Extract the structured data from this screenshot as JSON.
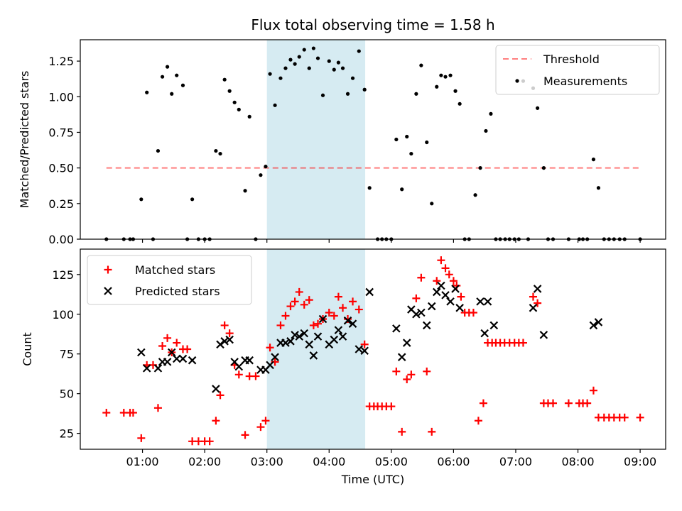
{
  "title": "Flux total observing time = 1.58 h",
  "colors": {
    "band": "#add8e6",
    "threshold": "#ff0000",
    "measurement": "#000000",
    "matched": "#ff0000",
    "predicted": "#000000"
  },
  "chart_data": [
    {
      "type": "scatter",
      "ylabel": "Matched/Predicted stars",
      "xlim": [
        0.0,
        9.41
      ],
      "ylim": [
        0.0,
        1.4
      ],
      "xticks": [
        1,
        2,
        3,
        4,
        5,
        6,
        7,
        8,
        9
      ],
      "yticks": [
        0.0,
        0.25,
        0.5,
        0.75,
        1.0,
        1.25
      ],
      "ytick_labels": [
        "0.00",
        "0.25",
        "0.50",
        "0.75",
        "1.00",
        "1.25"
      ],
      "legend_position": "top-right",
      "highlight_band": [
        3.0,
        4.58
      ],
      "threshold": {
        "name": "Threshold",
        "x": [
          0.42,
          9.0
        ],
        "y": 0.5,
        "style": "dashed",
        "alpha": 0.5
      },
      "series": [
        {
          "name": "Measurements",
          "marker": "dot",
          "points": [
            [
              0.42,
              0.0
            ],
            [
              0.7,
              0.0
            ],
            [
              0.8,
              0.0
            ],
            [
              0.85,
              0.0
            ],
            [
              0.98,
              0.28
            ],
            [
              1.07,
              1.03
            ],
            [
              1.17,
              0.0
            ],
            [
              1.25,
              0.62
            ],
            [
              1.32,
              1.14
            ],
            [
              1.4,
              1.21
            ],
            [
              1.47,
              1.02
            ],
            [
              1.55,
              1.15
            ],
            [
              1.65,
              1.08
            ],
            [
              1.72,
              0.0
            ],
            [
              1.8,
              0.28
            ],
            [
              1.9,
              0.0
            ],
            [
              2.0,
              0.0
            ],
            [
              2.08,
              0.0
            ],
            [
              2.18,
              0.62
            ],
            [
              2.25,
              0.6
            ],
            [
              2.32,
              1.12
            ],
            [
              2.4,
              1.04
            ],
            [
              2.48,
              0.96
            ],
            [
              2.55,
              0.91
            ],
            [
              2.65,
              0.34
            ],
            [
              2.72,
              0.86
            ],
            [
              2.82,
              0.0
            ],
            [
              2.9,
              0.45
            ],
            [
              2.98,
              0.51
            ],
            [
              3.05,
              1.16
            ],
            [
              3.13,
              0.94
            ],
            [
              3.22,
              1.13
            ],
            [
              3.3,
              1.2
            ],
            [
              3.38,
              1.26
            ],
            [
              3.45,
              1.23
            ],
            [
              3.52,
              1.28
            ],
            [
              3.6,
              1.33
            ],
            [
              3.68,
              1.2
            ],
            [
              3.75,
              1.34
            ],
            [
              3.82,
              1.27
            ],
            [
              3.9,
              1.01
            ],
            [
              4.0,
              1.25
            ],
            [
              4.08,
              1.19
            ],
            [
              4.15,
              1.24
            ],
            [
              4.22,
              1.2
            ],
            [
              4.3,
              1.02
            ],
            [
              4.38,
              1.13
            ],
            [
              4.48,
              1.32
            ],
            [
              4.57,
              1.05
            ],
            [
              4.65,
              0.36
            ],
            [
              4.78,
              0.0
            ],
            [
              4.85,
              0.0
            ],
            [
              4.92,
              0.0
            ],
            [
              5.0,
              0.0
            ],
            [
              5.08,
              0.7
            ],
            [
              5.17,
              0.35
            ],
            [
              5.25,
              0.72
            ],
            [
              5.32,
              0.6
            ],
            [
              5.4,
              1.02
            ],
            [
              5.48,
              1.22
            ],
            [
              5.57,
              0.68
            ],
            [
              5.65,
              0.25
            ],
            [
              5.73,
              1.07
            ],
            [
              5.8,
              1.15
            ],
            [
              5.87,
              1.14
            ],
            [
              5.95,
              1.15
            ],
            [
              6.03,
              1.04
            ],
            [
              6.1,
              0.95
            ],
            [
              6.18,
              0.0
            ],
            [
              6.25,
              0.0
            ],
            [
              6.35,
              0.31
            ],
            [
              6.43,
              0.5
            ],
            [
              6.52,
              0.76
            ],
            [
              6.6,
              0.88
            ],
            [
              6.68,
              0.0
            ],
            [
              6.75,
              0.0
            ],
            [
              6.83,
              0.0
            ],
            [
              6.9,
              0.0
            ],
            [
              6.98,
              0.0
            ],
            [
              7.05,
              0.0
            ],
            [
              7.12,
              1.11
            ],
            [
              7.2,
              0.0
            ],
            [
              7.28,
              1.06
            ],
            [
              7.35,
              0.92
            ],
            [
              7.45,
              0.5
            ],
            [
              7.52,
              0.0
            ],
            [
              7.6,
              0.0
            ],
            [
              7.85,
              0.0
            ],
            [
              8.02,
              0.0
            ],
            [
              8.08,
              0.0
            ],
            [
              8.15,
              0.0
            ],
            [
              8.25,
              0.56
            ],
            [
              8.33,
              0.36
            ],
            [
              8.42,
              0.0
            ],
            [
              8.5,
              0.0
            ],
            [
              8.58,
              0.0
            ],
            [
              8.67,
              0.0
            ],
            [
              8.75,
              0.0
            ],
            [
              9.0,
              0.0
            ]
          ]
        }
      ]
    },
    {
      "type": "scatter",
      "xlabel": "Time (UTC)",
      "ylabel": "Count",
      "xlim": [
        0.0,
        9.41
      ],
      "ylim": [
        15,
        141
      ],
      "xticks": [
        1,
        2,
        3,
        4,
        5,
        6,
        7,
        8,
        9
      ],
      "xtick_labels": [
        "01:00",
        "02:00",
        "03:00",
        "04:00",
        "05:00",
        "06:00",
        "07:00",
        "08:00",
        "09:00"
      ],
      "yticks": [
        25,
        50,
        75,
        100,
        125
      ],
      "ytick_labels": [
        "25",
        "50",
        "75",
        "100",
        "125"
      ],
      "legend_position": "top-left",
      "highlight_band": [
        3.0,
        4.58
      ],
      "series": [
        {
          "name": "Matched stars",
          "marker": "plus",
          "points": [
            [
              0.42,
              38
            ],
            [
              0.7,
              38
            ],
            [
              0.8,
              38
            ],
            [
              0.85,
              38
            ],
            [
              0.98,
              22
            ],
            [
              1.07,
              68
            ],
            [
              1.17,
              68
            ],
            [
              1.25,
              41
            ],
            [
              1.32,
              80
            ],
            [
              1.4,
              85
            ],
            [
              1.47,
              76
            ],
            [
              1.55,
              82
            ],
            [
              1.65,
              78
            ],
            [
              1.72,
              78
            ],
            [
              1.8,
              20
            ],
            [
              1.9,
              20
            ],
            [
              2.0,
              20
            ],
            [
              2.08,
              20
            ],
            [
              2.18,
              33
            ],
            [
              2.25,
              49
            ],
            [
              2.32,
              93
            ],
            [
              2.4,
              88
            ],
            [
              2.48,
              68
            ],
            [
              2.55,
              62
            ],
            [
              2.65,
              24
            ],
            [
              2.72,
              61
            ],
            [
              2.82,
              61
            ],
            [
              2.9,
              29
            ],
            [
              2.98,
              33
            ],
            [
              3.05,
              79
            ],
            [
              3.13,
              70
            ],
            [
              3.22,
              93
            ],
            [
              3.3,
              99
            ],
            [
              3.38,
              105
            ],
            [
              3.45,
              108
            ],
            [
              3.52,
              114
            ],
            [
              3.6,
              106
            ],
            [
              3.68,
              109
            ],
            [
              3.75,
              93
            ],
            [
              3.82,
              94
            ],
            [
              3.9,
              97
            ],
            [
              4.0,
              101
            ],
            [
              4.08,
              99
            ],
            [
              4.15,
              111
            ],
            [
              4.22,
              104
            ],
            [
              4.3,
              97
            ],
            [
              4.38,
              108
            ],
            [
              4.48,
              103
            ],
            [
              4.57,
              81
            ],
            [
              4.65,
              42
            ],
            [
              4.72,
              42
            ],
            [
              4.78,
              42
            ],
            [
              4.85,
              42
            ],
            [
              4.92,
              42
            ],
            [
              5.0,
              42
            ],
            [
              5.08,
              64
            ],
            [
              5.17,
              26
            ],
            [
              5.25,
              59
            ],
            [
              5.32,
              62
            ],
            [
              5.4,
              110
            ],
            [
              5.48,
              123
            ],
            [
              5.57,
              64
            ],
            [
              5.65,
              26
            ],
            [
              5.73,
              121
            ],
            [
              5.8,
              134
            ],
            [
              5.87,
              129
            ],
            [
              5.93,
              125
            ],
            [
              6.0,
              121
            ],
            [
              6.05,
              118
            ],
            [
              6.12,
              111
            ],
            [
              6.18,
              101
            ],
            [
              6.25,
              101
            ],
            [
              6.32,
              101
            ],
            [
              6.4,
              33
            ],
            [
              6.48,
              44
            ],
            [
              6.55,
              82
            ],
            [
              6.62,
              82
            ],
            [
              6.68,
              82
            ],
            [
              6.75,
              82
            ],
            [
              6.82,
              82
            ],
            [
              6.9,
              82
            ],
            [
              6.98,
              82
            ],
            [
              7.05,
              82
            ],
            [
              7.12,
              82
            ],
            [
              7.28,
              111
            ],
            [
              7.35,
              107
            ],
            [
              7.45,
              44
            ],
            [
              7.52,
              44
            ],
            [
              7.6,
              44
            ],
            [
              7.85,
              44
            ],
            [
              8.02,
              44
            ],
            [
              8.08,
              44
            ],
            [
              8.15,
              44
            ],
            [
              8.25,
              52
            ],
            [
              8.33,
              35
            ],
            [
              8.42,
              35
            ],
            [
              8.5,
              35
            ],
            [
              8.58,
              35
            ],
            [
              8.67,
              35
            ],
            [
              8.75,
              35
            ],
            [
              9.0,
              35
            ]
          ]
        },
        {
          "name": "Predicted stars",
          "marker": "x",
          "points": [
            [
              0.98,
              76
            ],
            [
              1.07,
              66
            ],
            [
              1.25,
              66
            ],
            [
              1.32,
              70
            ],
            [
              1.4,
              70
            ],
            [
              1.47,
              76
            ],
            [
              1.55,
              72
            ],
            [
              1.65,
              72
            ],
            [
              1.8,
              71
            ],
            [
              2.18,
              53
            ],
            [
              2.25,
              81
            ],
            [
              2.32,
              83
            ],
            [
              2.4,
              84
            ],
            [
              2.48,
              70
            ],
            [
              2.55,
              67
            ],
            [
              2.65,
              71
            ],
            [
              2.72,
              71
            ],
            [
              2.9,
              65
            ],
            [
              2.98,
              65
            ],
            [
              3.05,
              68
            ],
            [
              3.13,
              73
            ],
            [
              3.22,
              82
            ],
            [
              3.3,
              82
            ],
            [
              3.38,
              83
            ],
            [
              3.45,
              87
            ],
            [
              3.52,
              86
            ],
            [
              3.6,
              88
            ],
            [
              3.68,
              81
            ],
            [
              3.75,
              74
            ],
            [
              3.82,
              86
            ],
            [
              3.9,
              97
            ],
            [
              4.0,
              81
            ],
            [
              4.08,
              84
            ],
            [
              4.15,
              90
            ],
            [
              4.22,
              86
            ],
            [
              4.3,
              96
            ],
            [
              4.38,
              94
            ],
            [
              4.48,
              78
            ],
            [
              4.57,
              77
            ],
            [
              4.65,
              114
            ],
            [
              5.08,
              91
            ],
            [
              5.17,
              73
            ],
            [
              5.25,
              82
            ],
            [
              5.32,
              103
            ],
            [
              5.4,
              100
            ],
            [
              5.48,
              101
            ],
            [
              5.57,
              93
            ],
            [
              5.65,
              105
            ],
            [
              5.73,
              114
            ],
            [
              5.8,
              118
            ],
            [
              5.87,
              112
            ],
            [
              5.95,
              108
            ],
            [
              6.03,
              116
            ],
            [
              6.1,
              104
            ],
            [
              6.43,
              108
            ],
            [
              6.5,
              88
            ],
            [
              6.55,
              108
            ],
            [
              6.65,
              93
            ],
            [
              7.28,
              104
            ],
            [
              7.35,
              116
            ],
            [
              7.45,
              87
            ],
            [
              8.25,
              93
            ],
            [
              8.33,
              95
            ]
          ]
        }
      ]
    }
  ]
}
